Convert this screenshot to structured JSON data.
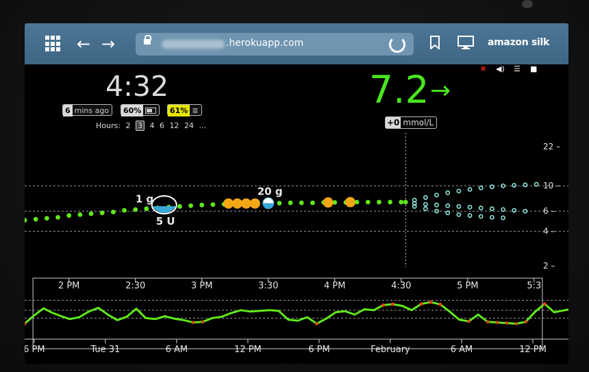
{
  "browser": {
    "url": ".herokuapp.com",
    "brand": "amazon silk"
  },
  "status": {
    "time": "4:32",
    "age_value": "6",
    "age_label": "mins ago",
    "battery": "60%",
    "storage": "61%",
    "bg": "7.2",
    "trend": "→",
    "delta_value": "+0",
    "delta_unit": "mmol/L",
    "hours_label": "Hours:",
    "hours": [
      "2",
      "3",
      "4",
      "6",
      "12",
      "24",
      "..."
    ],
    "hours_selected": "3"
  },
  "chart_data": [
    {
      "type": "scatter",
      "title": "",
      "x_unit": "minutes after 1:40 PM",
      "x_ticks": [
        "2 PM",
        "2:30",
        "3 PM",
        "3:30",
        "4 PM",
        "4:30",
        "5 PM",
        "5:3"
      ],
      "x_tick_minutes": [
        20,
        50,
        80,
        110,
        140,
        170,
        200,
        230
      ],
      "xlim": [
        0,
        235
      ],
      "y_ticks": [
        "22",
        "10",
        "6",
        "4",
        "2"
      ],
      "y_tick_values": [
        22,
        10,
        6,
        4,
        2
      ],
      "y_scale": "log",
      "ylim": [
        1.6,
        26
      ],
      "now_minute": 172,
      "bg_readings": {
        "x": [
          0,
          5,
          10,
          15,
          20,
          25,
          30,
          35,
          40,
          45,
          50,
          55,
          60,
          65,
          70,
          75,
          80,
          85,
          90,
          95,
          100,
          105,
          110,
          115,
          120,
          125,
          130,
          135,
          140,
          145,
          150,
          155,
          160,
          165,
          170,
          172
        ],
        "y": [
          5.0,
          5.1,
          5.2,
          5.3,
          5.5,
          5.6,
          5.7,
          5.8,
          5.9,
          6.1,
          6.2,
          6.3,
          6.4,
          6.5,
          6.6,
          6.7,
          6.8,
          6.85,
          6.9,
          6.95,
          7.0,
          7.0,
          7.05,
          7.05,
          7.1,
          7.1,
          7.1,
          7.15,
          7.15,
          7.15,
          7.2,
          7.2,
          7.2,
          7.2,
          7.2,
          7.2
        ]
      },
      "predictions": {
        "upper": {
          "x": [
            176,
            181,
            186,
            191,
            196,
            201,
            206,
            211,
            216,
            221,
            226,
            231
          ],
          "y": [
            7.5,
            7.9,
            8.3,
            8.7,
            9.0,
            9.3,
            9.6,
            9.8,
            10.0,
            10.1,
            10.2,
            10.3
          ]
        },
        "mid": {
          "x": [
            176,
            181,
            186,
            191,
            196,
            201,
            206,
            211,
            216,
            221,
            226
          ],
          "y": [
            7.0,
            6.9,
            6.8,
            6.7,
            6.6,
            6.5,
            6.4,
            6.3,
            6.2,
            6.1,
            6.0
          ]
        },
        "lower": {
          "x": [
            176,
            181,
            186,
            191,
            196,
            201,
            206,
            211,
            216
          ],
          "y": [
            6.6,
            6.3,
            6.0,
            5.8,
            5.6,
            5.5,
            5.4,
            5.3,
            5.25
          ]
        }
      },
      "treatments": [
        {
          "label": "1 g",
          "minute": 42
        },
        {
          "label": "20 g",
          "minute": 110
        },
        {
          "label": "5 U",
          "minute": 63
        }
      ],
      "carb_markers": {
        "x": [
          92,
          96,
          100,
          104,
          137,
          147
        ],
        "y": [
          7.0,
          7.0,
          7.0,
          7.0,
          7.15,
          7.2
        ]
      },
      "colors": {
        "in_range": "#5fe81b",
        "carbs": "#f2a716",
        "prediction": "#8ee8e0",
        "bolus": "#3aa8d8",
        "high": "#ff3a18",
        "low_band": "#d8d81a"
      }
    },
    {
      "type": "line",
      "title": "",
      "x_ticks": [
        "6 PM",
        "Tue 31",
        "6 AM",
        "12 PM",
        "6 PM",
        "February",
        "6 AM",
        "12 PM"
      ],
      "x_tick_hours": [
        0,
        6,
        12,
        18,
        24,
        30,
        36,
        42
      ],
      "xlim": [
        -0.8,
        45
      ],
      "ylim": [
        2,
        22
      ],
      "y_scale": "log",
      "guides": [
        10,
        6,
        4
      ],
      "window_hours": [
        -0.1,
        42.8
      ],
      "series": [
        {
          "x": [
            -0.8,
            0,
            0.8,
            1.5,
            2.2,
            3,
            3.8,
            4.6,
            5.4,
            6.2,
            7,
            7.8,
            8.6,
            9.4,
            10.2,
            11,
            11.8,
            12.6,
            13.4,
            14.2,
            15,
            15.8,
            16.6,
            17.4,
            18.2,
            19,
            19.8,
            20.6,
            21.4,
            22.2,
            23,
            23.8,
            24.6,
            25.4,
            26.2,
            27,
            27.8,
            28.6,
            29.4,
            30.2,
            31,
            31.8,
            32.6,
            33.4,
            34.2,
            35,
            35.8,
            36.6,
            37.4,
            38.2,
            39,
            39.8,
            40.6,
            41.4,
            42.2,
            43,
            43.8,
            45
          ],
          "y": [
            3.0,
            4.6,
            6.6,
            5.3,
            4.5,
            3.8,
            4.2,
            5.6,
            6.8,
            4.8,
            3.6,
            4.3,
            6.5,
            4.0,
            3.8,
            4.4,
            3.9,
            3.6,
            3.2,
            3.3,
            4.0,
            4.3,
            5.2,
            6.0,
            5.6,
            5.8,
            6.0,
            5.8,
            3.7,
            3.5,
            4.2,
            3.0,
            3.9,
            5.4,
            5.7,
            4.8,
            6.3,
            6.0,
            7.8,
            8.2,
            7.5,
            6.0,
            8.3,
            9.1,
            8.1,
            5.6,
            3.7,
            3.4,
            4.8,
            3.3,
            3.2,
            3.1,
            3.0,
            3.3,
            5.6,
            8.3,
            5.4,
            6.2
          ]
        }
      ]
    }
  ]
}
